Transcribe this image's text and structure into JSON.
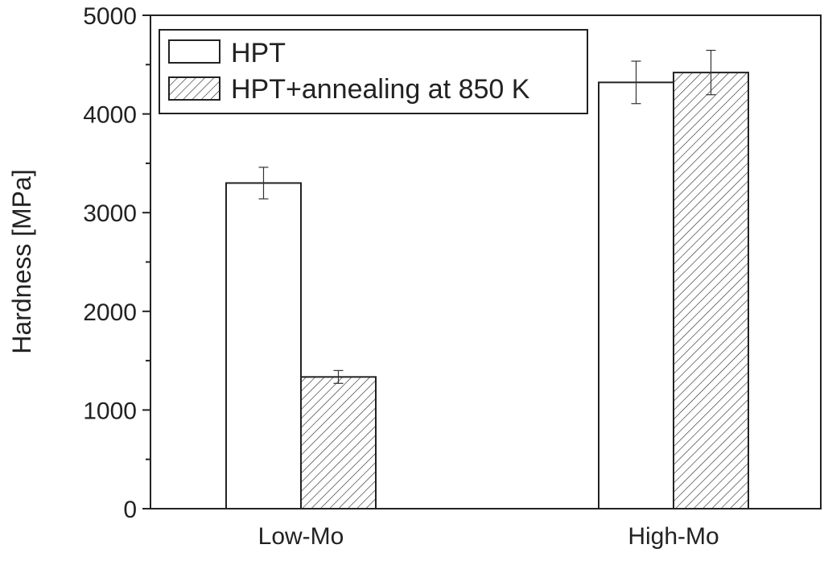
{
  "chart_data": {
    "type": "bar",
    "title": "",
    "xlabel": "",
    "ylabel": "Hardness [MPa]",
    "ylim": [
      0,
      5000
    ],
    "yticks": [
      0,
      1000,
      2000,
      3000,
      4000,
      5000
    ],
    "ytick_labels": [
      "0",
      "1000",
      "2000",
      "3000",
      "4000",
      "5000"
    ],
    "categories": [
      "Low-Mo",
      "High-Mo"
    ],
    "series": [
      {
        "name": "HPT",
        "fill": "white",
        "values": [
          3300,
          4320
        ],
        "errors": [
          160,
          215
        ]
      },
      {
        "name": "HPT+annealing at 850 K",
        "fill": "hatched",
        "values": [
          1335,
          4420
        ],
        "errors": [
          65,
          225
        ]
      }
    ],
    "legend": {
      "placement": "top-left",
      "entries": [
        "HPT",
        "HPT+annealing at 850 K"
      ]
    },
    "grid": false
  }
}
